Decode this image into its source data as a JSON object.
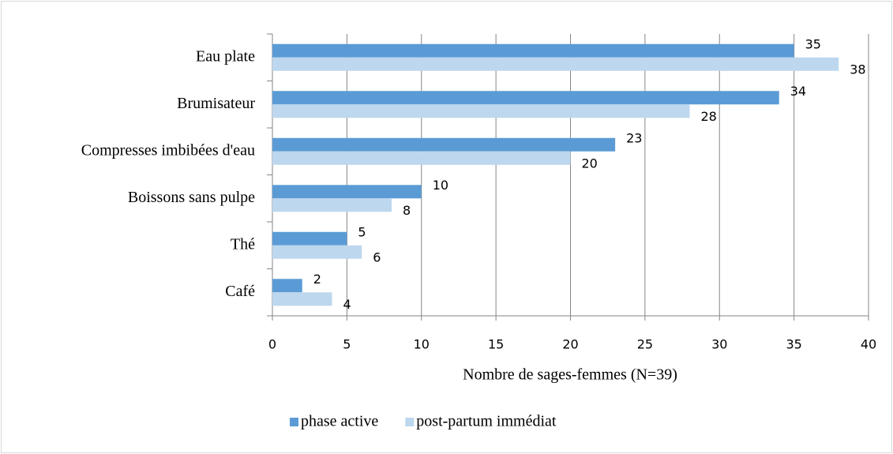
{
  "chart_data": {
    "type": "bar",
    "orientation": "horizontal",
    "categories": [
      "Eau plate",
      "Brumisateur",
      "Compresses imbibées d'eau",
      "Boissons sans pulpe",
      "Thé",
      "Café"
    ],
    "series": [
      {
        "name": "phase active",
        "color": "#5b9bd5",
        "values": [
          35,
          34,
          23,
          10,
          5,
          2
        ]
      },
      {
        "name": "post-partum immédiat",
        "color": "#bdd7ee",
        "values": [
          38,
          28,
          20,
          8,
          6,
          4
        ]
      }
    ],
    "xlabel": "Nombre de sages-femmes (N=39)",
    "xlim": [
      0,
      40
    ],
    "xticks": [
      0,
      5,
      10,
      15,
      20,
      25,
      30,
      35,
      40
    ],
    "grid": true,
    "legend": "bottom"
  }
}
